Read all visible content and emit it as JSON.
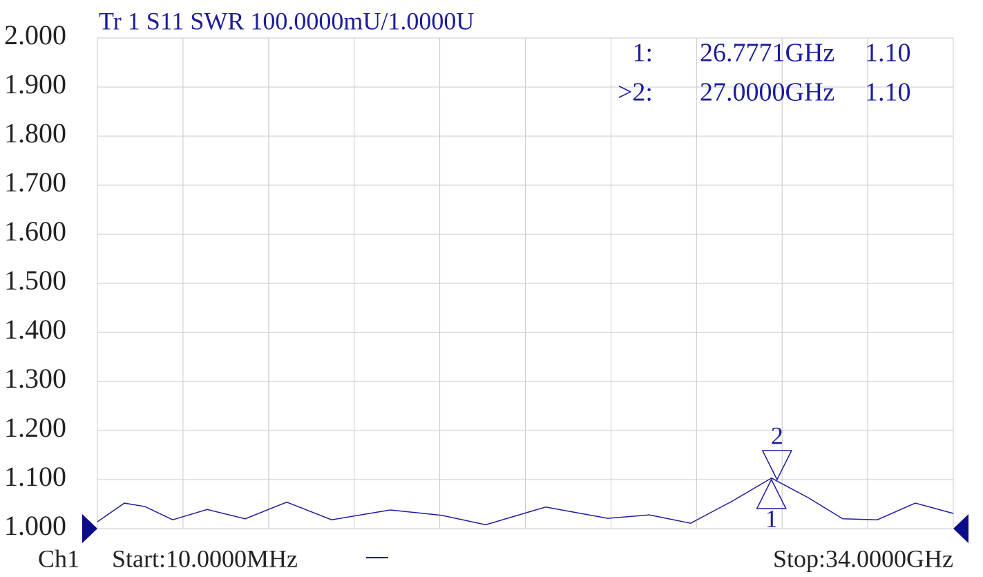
{
  "chart_data": {
    "type": "line",
    "title": "Tr 1  S11 SWR 100.0000mU/1.0000U",
    "x": [
      0.01,
      1.08,
      1.9,
      3.0,
      4.37,
      5.88,
      7.53,
      9.31,
      11.64,
      13.7,
      15.43,
      17.81,
      20.28,
      21.93,
      23.57,
      25.22,
      26.78,
      28.24,
      29.61,
      30.98,
      32.49,
      34.0
    ],
    "series": [
      {
        "name": "S11",
        "color": "#1c1c9c",
        "values": [
          1.014,
          1.052,
          1.045,
          1.018,
          1.039,
          1.02,
          1.054,
          1.018,
          1.038,
          1.027,
          1.008,
          1.044,
          1.021,
          1.028,
          1.011,
          1.056,
          1.103,
          1.063,
          1.02,
          1.018,
          1.052,
          1.031
        ]
      }
    ],
    "xlim": [
      0.01,
      34.0
    ],
    "x_divisions": 10,
    "ylim": [
      1.0,
      2.0
    ],
    "yticks": [
      {
        "value": 2.0,
        "label": "2.000"
      },
      {
        "value": 1.9,
        "label": "1.900"
      },
      {
        "value": 1.8,
        "label": "1.800"
      },
      {
        "value": 1.7,
        "label": "1.700"
      },
      {
        "value": 1.6,
        "label": "1.600"
      },
      {
        "value": 1.5,
        "label": "1.500"
      },
      {
        "value": 1.4,
        "label": "1.400"
      },
      {
        "value": 1.3,
        "label": "1.300"
      },
      {
        "value": 1.2,
        "label": "1.200"
      },
      {
        "value": 1.1,
        "label": "1.100"
      },
      {
        "value": 1.0,
        "label": "1.000"
      }
    ],
    "grid": true,
    "markers": [
      {
        "label": "1",
        "name": "1:",
        "x": 26.7771,
        "x_label": "26.7771GHz",
        "value": 1.1,
        "value_label": "1.10",
        "direction": "up"
      },
      {
        "label": "2",
        "name": ">2:",
        "x": 27.0,
        "x_label": "27.0000GHz",
        "value": 1.1,
        "value_label": "1.10",
        "direction": "down"
      }
    ],
    "channel": "Ch1",
    "start_label": "Start:10.0000MHz",
    "stop_label": "Stop:34.0000GHz"
  }
}
